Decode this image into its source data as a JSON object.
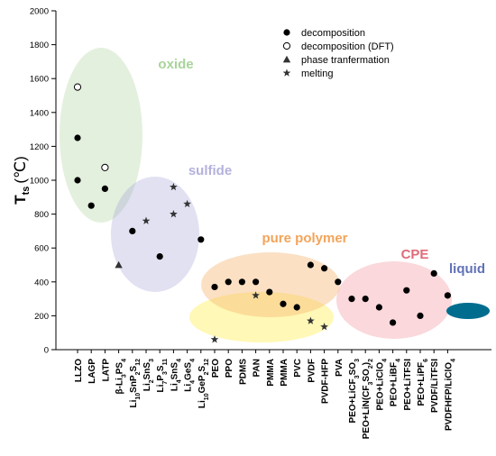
{
  "chart_data": {
    "type": "scatter",
    "ylabel_main": "T",
    "ylabel_sub": "ts",
    "ylabel_unit": "(℃)",
    "ylim": [
      0,
      2000
    ],
    "yticks": [
      0,
      200,
      400,
      600,
      800,
      1000,
      1200,
      1400,
      1600,
      1800,
      2000
    ],
    "categories": [
      {
        "id": "llzo",
        "base": "LLZO"
      },
      {
        "id": "lagp",
        "base": "LAGP"
      },
      {
        "id": "latp",
        "base": "LATP"
      },
      {
        "id": "b-li3ps4",
        "parts": [
          [
            "β-Li",
            ""
          ],
          [
            "3",
            "sub"
          ],
          [
            "PS",
            ""
          ],
          [
            "4",
            "sub"
          ]
        ]
      },
      {
        "id": "li10snp2s12",
        "parts": [
          [
            "Li",
            ""
          ],
          [
            "10",
            "sub"
          ],
          [
            "SnP",
            ""
          ],
          [
            "2",
            "sub"
          ],
          [
            "S",
            ""
          ],
          [
            "12",
            "sub"
          ]
        ]
      },
      {
        "id": "li2sns3",
        "parts": [
          [
            "Li",
            ""
          ],
          [
            "2",
            "sub"
          ],
          [
            "SnS",
            ""
          ],
          [
            "3",
            "sub"
          ]
        ]
      },
      {
        "id": "li7p3s11",
        "parts": [
          [
            "Li",
            ""
          ],
          [
            "7",
            "sub"
          ],
          [
            "P",
            ""
          ],
          [
            "3",
            "sub"
          ],
          [
            "S",
            ""
          ],
          [
            "11",
            "sub"
          ]
        ]
      },
      {
        "id": "li4sns4",
        "parts": [
          [
            "Li",
            ""
          ],
          [
            "4",
            "sub"
          ],
          [
            "SnS",
            ""
          ],
          [
            "4",
            "sub"
          ]
        ]
      },
      {
        "id": "li4ges4",
        "parts": [
          [
            "Li",
            ""
          ],
          [
            "4",
            "sub"
          ],
          [
            "GeS",
            ""
          ],
          [
            "4",
            "sub"
          ]
        ]
      },
      {
        "id": "li10gep2s12",
        "parts": [
          [
            "Li",
            ""
          ],
          [
            "10",
            "sub"
          ],
          [
            "GeP",
            ""
          ],
          [
            "2",
            "sub"
          ],
          [
            "S",
            ""
          ],
          [
            "12",
            "sub"
          ]
        ]
      },
      {
        "id": "peo",
        "base": "PEO"
      },
      {
        "id": "ppo",
        "base": "PPO"
      },
      {
        "id": "pdms",
        "base": "PDMS"
      },
      {
        "id": "pan",
        "base": "PAN"
      },
      {
        "id": "pmma-1",
        "base": "PMMA"
      },
      {
        "id": "pmma-2",
        "base": "PMMA"
      },
      {
        "id": "pvc",
        "base": "PVC"
      },
      {
        "id": "pvdf",
        "base": "PVDF"
      },
      {
        "id": "pvdf-hfp",
        "base": "PVDF-HFP"
      },
      {
        "id": "pva",
        "base": "PVA"
      },
      {
        "id": "peo-licf3so3",
        "parts": [
          [
            "PEO+LiCF",
            ""
          ],
          [
            "3",
            "sub"
          ],
          [
            "SO",
            ""
          ],
          [
            "3",
            "sub"
          ]
        ]
      },
      {
        "id": "peo-lin",
        "parts": [
          [
            "PEO+LiN(CF",
            ""
          ],
          [
            "3",
            "sub"
          ],
          [
            "SO",
            ""
          ],
          [
            "2",
            "sub"
          ],
          [
            ")",
            ""
          ],
          [
            "2",
            "sub"
          ]
        ]
      },
      {
        "id": "peo-liclo4",
        "parts": [
          [
            "PEO+LiClO",
            ""
          ],
          [
            "4",
            "sub"
          ]
        ]
      },
      {
        "id": "peo-libf4",
        "parts": [
          [
            "PEO+LiBF",
            ""
          ],
          [
            "4",
            "sub"
          ]
        ]
      },
      {
        "id": "peo-litfsi",
        "base": "PEO+LiTFSI"
      },
      {
        "id": "peo-lipf6",
        "parts": [
          [
            "PEO+LiPF",
            ""
          ],
          [
            "6",
            "sub"
          ]
        ]
      },
      {
        "id": "pvdf-litfsi",
        "base": "PVDF/LiTFSI"
      },
      {
        "id": "pvdfhfp-liclo4",
        "parts": [
          [
            "PVDFHFP/LiClO",
            ""
          ],
          [
            "4",
            "sub"
          ]
        ]
      }
    ],
    "series": [
      {
        "name": "decomposition",
        "marker": "filled-circle",
        "points": [
          [
            0,
            1250
          ],
          [
            0,
            1000
          ],
          [
            1,
            850
          ],
          [
            2,
            950
          ],
          [
            4,
            700
          ],
          [
            6,
            550
          ],
          [
            9,
            650
          ],
          [
            10,
            370
          ],
          [
            11,
            400
          ],
          [
            12,
            400
          ],
          [
            13,
            400
          ],
          [
            14,
            340
          ],
          [
            15,
            270
          ],
          [
            16,
            250
          ],
          [
            17,
            500
          ],
          [
            18,
            480
          ],
          [
            19,
            400
          ],
          [
            20,
            300
          ],
          [
            21,
            300
          ],
          [
            22,
            250
          ],
          [
            23,
            160
          ],
          [
            24,
            350
          ],
          [
            25,
            200
          ],
          [
            26,
            450
          ],
          [
            27,
            320
          ]
        ]
      },
      {
        "name": "decomposition (DFT)",
        "marker": "open-circle",
        "points": [
          [
            0,
            1550
          ],
          [
            2,
            1075
          ]
        ]
      },
      {
        "name": "phase tranfermation",
        "marker": "triangle",
        "points": [
          [
            3,
            500
          ]
        ]
      },
      {
        "name": "melting",
        "marker": "star",
        "points": [
          [
            5,
            760
          ],
          [
            7,
            800
          ],
          [
            7,
            960
          ],
          [
            8,
            860
          ],
          [
            10,
            60
          ],
          [
            13,
            320
          ],
          [
            17,
            170
          ],
          [
            18,
            135
          ]
        ]
      }
    ],
    "regions": [
      {
        "label": "oxide",
        "color": "#92c47d",
        "text_color": "#a8d49a",
        "fill_opacity": 0.25
      },
      {
        "label": "sulfide",
        "color": "#9d9bd3",
        "text_color": "#b3b1dd",
        "fill_opacity": 0.3
      },
      {
        "label": "pure polymer",
        "color": "#f6b26b",
        "text_color": "#f3a45a",
        "fill_opacity": 0.4
      },
      {
        "label": "",
        "color": "#fff27a",
        "fill_opacity": 0.55
      },
      {
        "label": "CPE",
        "color": "#ee7f8a",
        "text_color": "#e06b79",
        "fill_opacity": 0.3
      },
      {
        "label": "liquid",
        "color": "#006d8f",
        "text_color": "#6071b8",
        "fill_opacity": 1.0
      }
    ],
    "legend_position": "top-right"
  }
}
